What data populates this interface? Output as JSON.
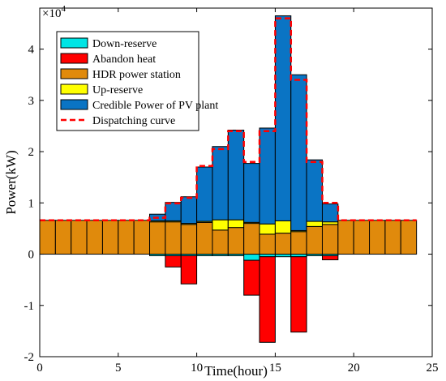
{
  "chart_data": {
    "type": "bar",
    "subtype": "stacked-bar-with-step-line",
    "xlabel": "Time(hour)",
    "ylabel": "Power(kW)",
    "y_multiplier_label": "×10",
    "y_multiplier_exp": "4",
    "xlim": [
      0,
      25
    ],
    "ylim": [
      -2,
      4.8
    ],
    "y_scale": 10000,
    "x_ticks": [
      0,
      5,
      10,
      15,
      20,
      25
    ],
    "y_ticks": [
      -2,
      -1,
      0,
      1,
      2,
      3,
      4
    ],
    "x_tick_labels": [
      "0",
      "5",
      "10",
      "15",
      "20",
      "25"
    ],
    "y_tick_labels": [
      "-2",
      "-1",
      "0",
      "1",
      "2",
      "3",
      "4"
    ],
    "grid": false,
    "legend_position": "top-left",
    "hours": [
      0.5,
      1.5,
      2.5,
      3.5,
      4.5,
      5.5,
      6.5,
      7.5,
      8.5,
      9.5,
      10.5,
      11.5,
      12.5,
      13.5,
      14.5,
      15.5,
      16.5,
      17.5,
      18.5,
      19.5,
      20.5,
      21.5,
      22.5,
      23.5
    ],
    "bar_width": 1,
    "series": [
      {
        "name": "Down-reserve",
        "color": "#00e5e5",
        "values": [
          0,
          0,
          0,
          0,
          0,
          0,
          0,
          -0.03,
          -0.03,
          -0.03,
          -0.03,
          -0.03,
          -0.03,
          -0.12,
          -0.05,
          -0.05,
          -0.05,
          -0.03,
          -0.03,
          0,
          0,
          0,
          0,
          0
        ]
      },
      {
        "name": "Abandon heat",
        "color": "#ff0000",
        "values": [
          0,
          0,
          0,
          0,
          0,
          0,
          0,
          0,
          -0.22,
          -0.55,
          0,
          0,
          0,
          -0.68,
          -1.67,
          0,
          -1.47,
          0,
          -0.08,
          0,
          0,
          0,
          0,
          0
        ]
      },
      {
        "name": "HDR power station",
        "color": "#e08a0c",
        "values": [
          0.66,
          0.66,
          0.66,
          0.66,
          0.66,
          0.66,
          0.66,
          0.63,
          0.63,
          0.58,
          0.62,
          0.47,
          0.52,
          0.6,
          0.39,
          0.41,
          0.44,
          0.54,
          0.58,
          0.66,
          0.66,
          0.66,
          0.66,
          0.66
        ]
      },
      {
        "name": "Up-reserve",
        "color": "#ffff00",
        "values": [
          0,
          0,
          0,
          0,
          0,
          0,
          0,
          0.02,
          0.02,
          0.02,
          0.02,
          0.2,
          0.15,
          0.02,
          0.2,
          0.24,
          0.02,
          0.1,
          0.05,
          0,
          0,
          0,
          0,
          0
        ]
      },
      {
        "name": "Credible Power of PV plant",
        "color": "#0a74c4",
        "values": [
          0,
          0,
          0,
          0,
          0,
          0,
          0,
          0.13,
          0.36,
          0.52,
          1.06,
          1.43,
          1.75,
          1.15,
          1.87,
          4.0,
          3.04,
          1.2,
          0.35,
          0,
          0,
          0,
          0,
          0
        ]
      }
    ],
    "line_series": {
      "name": "Dispatching curve",
      "color": "#ff0000",
      "style": "dashed",
      "values": [
        0.66,
        0.66,
        0.66,
        0.66,
        0.66,
        0.66,
        0.66,
        0.71,
        0.99,
        1.1,
        1.72,
        2.05,
        2.4,
        1.8,
        2.4,
        4.6,
        3.4,
        1.8,
        1.0,
        0.66,
        0.66,
        0.66,
        0.66,
        0.66
      ]
    }
  }
}
